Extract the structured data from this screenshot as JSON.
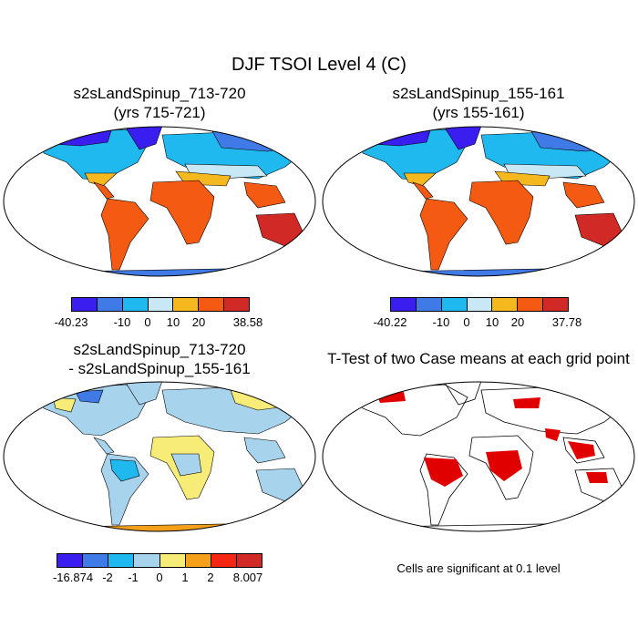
{
  "figure": {
    "title": "DJF TSOI Level 4 (C)"
  },
  "panels": {
    "p1": {
      "title_line1": "s2sLandSpinup_713-720",
      "title_line2": "(yrs 715-721)",
      "colorbar": {
        "colors": [
          "#3a1ef0",
          "#3f7ae6",
          "#1fb9f0",
          "#c9e8f5",
          "#f5b81f",
          "#f55a12",
          "#d12a26"
        ],
        "tick_labels": [
          "-40.23",
          "-10",
          "0",
          "10",
          "20",
          "38.58"
        ]
      }
    },
    "p2": {
      "title_line1": "s2sLandSpinup_155-161",
      "title_line2": "(yrs 155-161)",
      "colorbar": {
        "colors": [
          "#3a1ef0",
          "#3f7ae6",
          "#1fb9f0",
          "#c9e8f5",
          "#f5b81f",
          "#f55a12",
          "#d12a26"
        ],
        "tick_labels": [
          "-40.22",
          "-10",
          "0",
          "10",
          "20",
          "37.78"
        ]
      }
    },
    "p3": {
      "title_line1": "s2sLandSpinup_713-720",
      "title_line2": "- s2sLandSpinup_155-161",
      "colorbar": {
        "colors": [
          "#3a1ef0",
          "#3f7ae6",
          "#1fb9f0",
          "#a8d3ec",
          "#f7ec78",
          "#f5a01a",
          "#f52612",
          "#d12a26"
        ],
        "tick_labels": [
          "-16.874",
          "-2",
          "-1",
          "0",
          "1",
          "2",
          "8.007"
        ]
      }
    },
    "p4": {
      "title_line1": "T-Test of two Case means at each grid point",
      "note": "Cells are significant at 0.1 level",
      "significant_color": "#e00000"
    }
  },
  "map_fills": {
    "p1": {
      "north": "#1fb9f0",
      "polar": "#3a1ef0",
      "mid": "#c9e8f5",
      "subtrop": "#f5b81f",
      "tropics": "#f55a12",
      "hot": "#d12a26",
      "ice": "#3f7ae6"
    },
    "p3": {
      "base": "#a8d3ec",
      "warm": "#f7ec78",
      "warm2": "#f5a01a",
      "cool": "#1fb9f0",
      "cold": "#3f7ae6"
    }
  }
}
